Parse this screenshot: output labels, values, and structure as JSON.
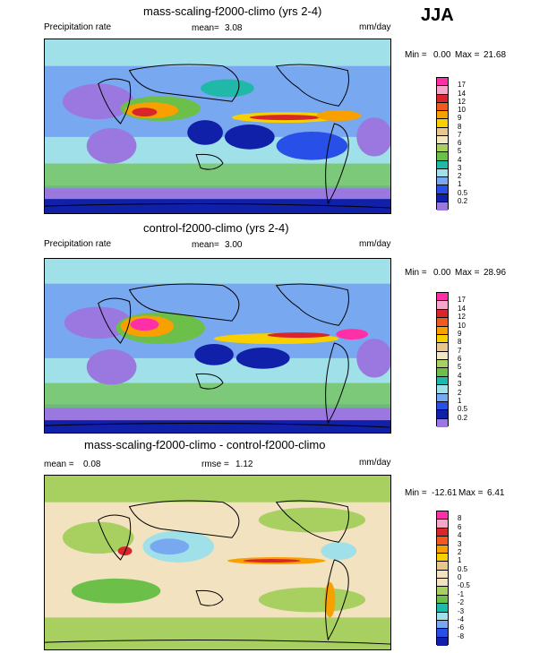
{
  "season": "JJA",
  "panels": [
    {
      "title": "mass-scaling-f2000-climo (yrs 2-4)",
      "left_label": "Precipitation rate",
      "mid_label": "mean=",
      "mid_value": "3.08",
      "right_label": "mm/day",
      "min_label": "Min =",
      "min_value": "0.00",
      "max_label": "Max =",
      "max_value": "21.68",
      "colorbar": {
        "labels": [
          "17",
          "14",
          "12",
          "10",
          "9",
          "8",
          "7",
          "6",
          "5",
          "4",
          "3",
          "2",
          "1",
          "0.5",
          "0.2"
        ],
        "colors": [
          "#ff2fa8",
          "#f4a8c8",
          "#d8262a",
          "#f05a1e",
          "#f8a000",
          "#f8d000",
          "#e8c88a",
          "#f0e8c0",
          "#a8d060",
          "#6cc04a",
          "#20b8a8",
          "#a0e0e8",
          "#78a8f0",
          "#2850e8",
          "#1020a8",
          "#9a78e0"
        ]
      }
    },
    {
      "title": "control-f2000-climo (yrs 2-4)",
      "left_label": "Precipitation rate",
      "mid_label": "mean=",
      "mid_value": "3.00",
      "right_label": "mm/day",
      "min_label": "Min =",
      "min_value": "0.00",
      "max_label": "Max =",
      "max_value": "28.96",
      "colorbar": {
        "labels": [
          "17",
          "14",
          "12",
          "10",
          "9",
          "8",
          "7",
          "6",
          "5",
          "4",
          "3",
          "2",
          "1",
          "0.5",
          "0.2"
        ],
        "colors": [
          "#ff2fa8",
          "#f4a8c8",
          "#d8262a",
          "#f05a1e",
          "#f8a000",
          "#f8d000",
          "#e8c88a",
          "#f0e8c0",
          "#a8d060",
          "#6cc04a",
          "#20b8a8",
          "#a0e0e8",
          "#78a8f0",
          "#2850e8",
          "#1020a8",
          "#9a78e0"
        ]
      }
    },
    {
      "title": "mass-scaling-f2000-climo - control-f2000-climo",
      "left_label": "mean =",
      "left_value": "0.08",
      "mid_label": "rmse =",
      "mid_value": "1.12",
      "right_label": "mm/day",
      "min_label": "Min =",
      "min_value": "-12.61",
      "max_label": "Max =",
      "max_value": "6.41",
      "colorbar": {
        "labels": [
          "8",
          "6",
          "4",
          "3",
          "2",
          "1",
          "0.5",
          "0",
          "-0.5",
          "-1",
          "-2",
          "-3",
          "-4",
          "-6",
          "-8"
        ],
        "colors": [
          "#ff2fa8",
          "#f4a8c8",
          "#d8262a",
          "#f05a1e",
          "#f8a000",
          "#f8d000",
          "#e8c88a",
          "#f2e2c0",
          "#f2e2c0",
          "#a8d060",
          "#6cc04a",
          "#20b8a8",
          "#a0e0e8",
          "#78a8f0",
          "#2850e8",
          "#1020a8"
        ]
      }
    }
  ]
}
